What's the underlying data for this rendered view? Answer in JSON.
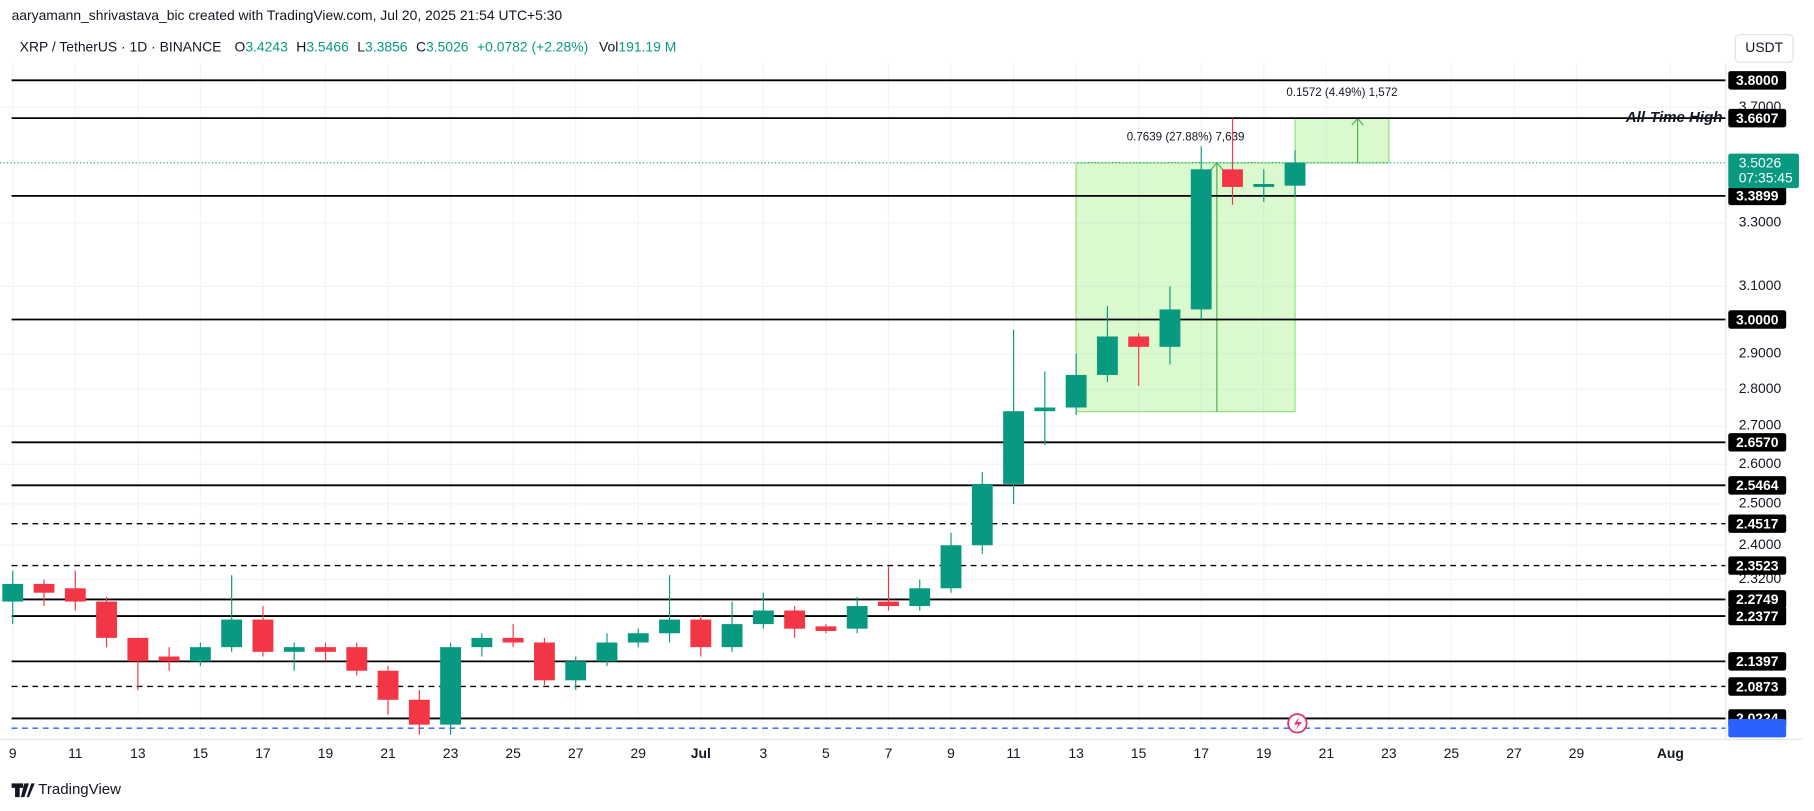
{
  "header": {
    "attribution": "aaryamann_shrivastava_bic created with TradingView.com, Jul 20, 2025 21:54 UTC+5:30",
    "symbol": "XRP / TetherUS · 1D · BINANCE",
    "ohlc_keys": [
      "O",
      "H",
      "L",
      "C"
    ],
    "change": "+0.0782 (+2.28%)",
    "volume_key": "Vol",
    "volume": "191.19 M",
    "currency": "USDT",
    "logo": "TradingView"
  },
  "chart_data": {
    "type": "candlestick",
    "log_scale": true,
    "grid": true,
    "up_color": "#089981",
    "down_color": "#f23645",
    "categories": [
      "9",
      null,
      "11",
      null,
      "13",
      null,
      "15",
      null,
      "17",
      null,
      "19",
      null,
      "21",
      null,
      "23",
      null,
      "25",
      null,
      "27",
      null,
      "29",
      null,
      "Jul",
      null,
      "3",
      null,
      "5",
      null,
      "7",
      null,
      "9",
      null,
      "11",
      null,
      "13",
      null,
      "15",
      null,
      "17",
      null,
      "19",
      null,
      "21",
      null,
      "23",
      null,
      "25",
      null,
      "27",
      null,
      "29",
      null,
      null,
      "Aug",
      null
    ],
    "open": [
      2.27,
      2.31,
      2.3,
      2.27,
      2.19,
      2.15,
      2.14,
      2.17,
      2.23,
      2.16,
      2.17,
      2.17,
      2.12,
      2.06,
      2.01,
      2.17,
      2.19,
      2.18,
      2.1,
      2.14,
      2.18,
      2.2,
      2.23,
      2.17,
      2.22,
      2.25,
      2.215,
      2.21,
      2.27,
      2.26,
      2.3,
      2.4,
      2.55,
      2.74,
      2.75,
      2.84,
      2.95,
      2.92,
      3.03,
      3.48,
      3.42,
      3.4243,
      null,
      null,
      null,
      null,
      null,
      null,
      null,
      null,
      null,
      null,
      null,
      null,
      null
    ],
    "high": [
      2.34,
      2.32,
      2.34,
      2.28,
      2.19,
      2.17,
      2.18,
      2.33,
      2.26,
      2.18,
      2.18,
      2.18,
      2.13,
      2.08,
      2.18,
      2.2,
      2.22,
      2.19,
      2.15,
      2.2,
      2.21,
      2.33,
      2.24,
      2.27,
      2.29,
      2.26,
      2.22,
      2.28,
      2.35,
      2.32,
      2.43,
      2.58,
      2.97,
      2.85,
      2.9,
      3.04,
      2.96,
      3.1,
      3.56,
      3.66,
      3.48,
      3.5466,
      null,
      null,
      null,
      null,
      null,
      null,
      null,
      null,
      null,
      null,
      null,
      null,
      null
    ],
    "low": [
      2.22,
      2.26,
      2.25,
      2.17,
      2.08,
      2.12,
      2.13,
      2.16,
      2.15,
      2.12,
      2.14,
      2.11,
      2.03,
      1.99,
      1.99,
      2.15,
      2.17,
      2.09,
      2.08,
      2.13,
      2.17,
      2.18,
      2.15,
      2.16,
      2.21,
      2.19,
      2.2,
      2.2,
      2.25,
      2.25,
      2.29,
      2.38,
      2.5,
      2.65,
      2.73,
      2.82,
      2.81,
      2.87,
      3.0,
      3.36,
      3.37,
      3.3856,
      null,
      null,
      null,
      null,
      null,
      null,
      null,
      null,
      null,
      null,
      null,
      null,
      null
    ],
    "close": [
      2.31,
      2.29,
      2.27,
      2.19,
      2.14,
      2.14,
      2.17,
      2.23,
      2.16,
      2.17,
      2.16,
      2.12,
      2.06,
      2.01,
      2.17,
      2.19,
      2.18,
      2.1,
      2.14,
      2.18,
      2.2,
      2.23,
      2.17,
      2.22,
      2.25,
      2.21,
      2.205,
      2.26,
      2.26,
      2.3,
      2.4,
      2.55,
      2.74,
      2.75,
      2.84,
      2.95,
      2.92,
      3.03,
      3.48,
      3.42,
      3.43,
      3.5026,
      null,
      null,
      null,
      null,
      null,
      null,
      null,
      null,
      null,
      null,
      null,
      null,
      null
    ],
    "ylim": [
      1.983,
      3.864
    ],
    "yticks": [
      {
        "value": 2.32,
        "label": "2.3200"
      },
      {
        "value": 2.4,
        "label": "2.4000"
      },
      {
        "value": 2.5,
        "label": "2.5000"
      },
      {
        "value": 2.6,
        "label": "2.6000"
      },
      {
        "value": 2.7,
        "label": "2.7000"
      },
      {
        "value": 2.8,
        "label": "2.8000"
      },
      {
        "value": 2.9,
        "label": "2.9000"
      },
      {
        "value": 3.1,
        "label": "3.1000"
      },
      {
        "value": 3.3,
        "label": "3.3000"
      },
      {
        "value": 3.7,
        "label": "3.7000"
      }
    ],
    "levels": [
      {
        "value": 3.8,
        "label": "3.8000",
        "dashed": false
      },
      {
        "value": 3.6607,
        "label": "3.6607",
        "dashed": false
      },
      {
        "value": 3.3899,
        "label": "3.3899",
        "dashed": false
      },
      {
        "value": 3.0,
        "label": "3.0000",
        "dashed": false
      },
      {
        "value": 2.657,
        "label": "2.6570",
        "dashed": false
      },
      {
        "value": 2.5464,
        "label": "2.5464",
        "dashed": false
      },
      {
        "value": 2.4517,
        "label": "2.4517",
        "dashed": true
      },
      {
        "value": 2.3523,
        "label": "2.3523",
        "dashed": true
      },
      {
        "value": 2.2749,
        "label": "2.2749",
        "dashed": false
      },
      {
        "value": 2.2377,
        "label": "2.2377",
        "dashed": false
      },
      {
        "value": 2.1397,
        "label": "2.1397",
        "dashed": false
      },
      {
        "value": 2.0873,
        "label": "2.0873",
        "dashed": true
      },
      {
        "value": 2.0224,
        "label": "2.0224",
        "dashed": false
      },
      {
        "value": 2.003,
        "dashed": true,
        "color": "#2962ff"
      }
    ],
    "ath_label": "All-Time High",
    "countdown": "07:35:45",
    "measurements": [
      {
        "label": "0.7639 (27.88%) 7,639",
        "low": 2.7387,
        "high": 3.5026
      },
      {
        "label": "0.1572 (4.49%) 1,572",
        "low": 3.5026,
        "high": 3.6598
      }
    ]
  }
}
